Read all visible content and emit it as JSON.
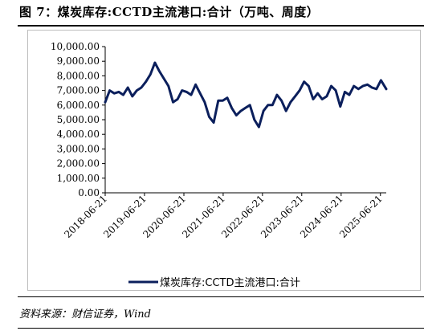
{
  "figure": {
    "title": "图 7：煤炭库存:CCTD主流港口:合计（万吨、周度）",
    "source": "资料来源：财信证券，Wind"
  },
  "colors": {
    "series": "#0b1f5c",
    "axis": "#000000",
    "frame": "#bdbdbd"
  },
  "chart_data": {
    "type": "line",
    "title": "",
    "xlabel": "",
    "ylabel": "",
    "ylim": [
      0,
      10000
    ],
    "y_ticks": [
      0,
      1000,
      2000,
      3000,
      4000,
      5000,
      6000,
      7000,
      8000,
      9000,
      10000
    ],
    "y_tick_labels": [
      "0.00",
      "1,000.00",
      "2,000.00",
      "3,000.00",
      "4,000.00",
      "5,000.00",
      "6,000.00",
      "7,000.00",
      "8,000.00",
      "9,000.00",
      "10,000.00"
    ],
    "xlim": [
      "2018-06-21",
      "2025-08-14"
    ],
    "x_ticks": [
      "2018-06-21",
      "2019-06-21",
      "2020-06-21",
      "2021-06-21",
      "2022-06-21",
      "2023-06-21",
      "2024-06-21",
      "2025-06-21"
    ],
    "grid": false,
    "legend": {
      "position": "bottom",
      "show": true
    },
    "series": [
      {
        "name": "煤炭库存:CCTD主流港口:合计",
        "x": [
          "2018-06-21",
          "2018-08-02",
          "2018-09-13",
          "2018-10-25",
          "2018-12-06",
          "2019-01-17",
          "2019-02-28",
          "2019-04-11",
          "2019-05-23",
          "2019-07-04",
          "2019-08-15",
          "2019-09-26",
          "2019-11-07",
          "2019-12-19",
          "2020-01-30",
          "2020-03-12",
          "2020-04-23",
          "2020-06-04",
          "2020-07-16",
          "2020-08-27",
          "2020-10-08",
          "2020-11-19",
          "2020-12-31",
          "2021-02-11",
          "2021-03-25",
          "2021-05-06",
          "2021-06-17",
          "2021-07-29",
          "2021-09-09",
          "2021-10-21",
          "2021-12-02",
          "2022-01-13",
          "2022-02-24",
          "2022-04-07",
          "2022-05-19",
          "2022-06-30",
          "2022-08-11",
          "2022-09-22",
          "2022-11-03",
          "2022-12-15",
          "2023-01-26",
          "2023-03-09",
          "2023-04-20",
          "2023-06-01",
          "2023-07-13",
          "2023-08-24",
          "2023-10-05",
          "2023-11-16",
          "2023-12-28",
          "2024-02-08",
          "2024-03-21",
          "2024-05-02",
          "2024-06-13",
          "2024-07-25",
          "2024-09-05",
          "2024-10-17",
          "2024-11-28",
          "2025-01-09",
          "2025-02-20",
          "2025-04-03",
          "2025-05-15",
          "2025-06-26",
          "2025-08-14"
        ],
        "values": [
          6200,
          7000,
          6800,
          6900,
          6700,
          7200,
          6600,
          7000,
          7200,
          7600,
          8100,
          8900,
          8300,
          7800,
          7300,
          6200,
          6400,
          7000,
          6900,
          6700,
          7400,
          6800,
          6200,
          5200,
          4800,
          6300,
          6300,
          6500,
          5800,
          5300,
          5600,
          5800,
          6000,
          5000,
          4500,
          5600,
          6000,
          6000,
          6700,
          6300,
          5600,
          6200,
          6600,
          7000,
          7600,
          7300,
          6400,
          6800,
          6400,
          6600,
          7300,
          7000,
          5900,
          6900,
          6700,
          7300,
          7100,
          7300,
          7400,
          7200,
          7100,
          7700,
          7100
        ]
      }
    ]
  }
}
